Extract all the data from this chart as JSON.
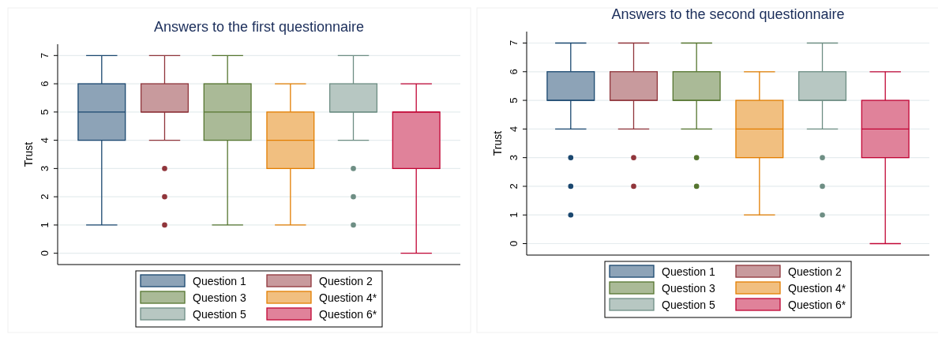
{
  "chart_data": [
    {
      "type": "box",
      "title": "Answers to the first questionnaire",
      "ylabel": "Trust",
      "categories": [
        null
      ],
      "ylim": [
        -0.4,
        7.4
      ],
      "yticks": [
        0,
        1,
        2,
        3,
        4,
        5,
        6,
        7
      ],
      "grid": "y",
      "legend": "bottom",
      "series": [
        {
          "name": "Question 1",
          "color": "#1a476f",
          "boxes": [
            {
              "low": 1,
              "q1": 4,
              "median": 5,
              "q3": 6,
              "high": 7
            }
          ]
        },
        {
          "name": "Question 2",
          "color": "#90353b",
          "boxes": [
            {
              "low": 4,
              "q1": 5,
              "median": 5,
              "q3": 6,
              "high": 7,
              "outliers": [
                3,
                2,
                1
              ]
            }
          ]
        },
        {
          "name": "Question 3",
          "color": "#55752f",
          "boxes": [
            {
              "low": 1,
              "q1": 4,
              "median": 5,
              "q3": 6,
              "high": 7
            }
          ]
        },
        {
          "name": "Question 4*",
          "color": "#e37e00",
          "boxes": [
            {
              "low": 1,
              "q1": 3,
              "median": 4,
              "q3": 5,
              "high": 6
            }
          ]
        },
        {
          "name": "Question 5",
          "color": "#6e8e84",
          "boxes": [
            {
              "low": 4,
              "q1": 5,
              "median": 5,
              "q3": 6,
              "high": 7,
              "outliers": [
                3,
                2,
                1
              ]
            }
          ]
        },
        {
          "name": "Question 6*",
          "color": "#c10534",
          "boxes": [
            {
              "low": 0,
              "q1": 3,
              "median": 5,
              "q3": 5,
              "high": 6
            }
          ]
        }
      ]
    },
    {
      "type": "box",
      "title": "Answers to the second questionnaire",
      "ylabel": "Trust",
      "categories": [
        null
      ],
      "ylim": [
        -0.4,
        7.4
      ],
      "yticks": [
        0,
        1,
        2,
        3,
        4,
        5,
        6,
        7
      ],
      "grid": "y",
      "legend": "bottom",
      "series": [
        {
          "name": "Question 1",
          "color": "#1a476f",
          "boxes": [
            {
              "low": 4,
              "q1": 5,
              "median": 5,
              "q3": 6,
              "high": 7,
              "outliers": [
                3,
                2,
                1
              ]
            }
          ]
        },
        {
          "name": "Question 2",
          "color": "#90353b",
          "boxes": [
            {
              "low": 4,
              "q1": 5,
              "median": 5,
              "q3": 6,
              "high": 7,
              "outliers": [
                3,
                2
              ]
            }
          ]
        },
        {
          "name": "Question 3",
          "color": "#55752f",
          "boxes": [
            {
              "low": 4,
              "q1": 5,
              "median": 5,
              "q3": 6,
              "high": 7,
              "outliers": [
                3,
                2
              ]
            }
          ]
        },
        {
          "name": "Question 4*",
          "color": "#e37e00",
          "boxes": [
            {
              "low": 1,
              "q1": 3,
              "median": 4,
              "q3": 5,
              "high": 6
            }
          ]
        },
        {
          "name": "Question 5",
          "color": "#6e8e84",
          "boxes": [
            {
              "low": 4,
              "q1": 5,
              "median": 5,
              "q3": 6,
              "high": 7,
              "outliers": [
                3,
                2,
                1
              ]
            }
          ]
        },
        {
          "name": "Question 6*",
          "color": "#c10534",
          "boxes": [
            {
              "low": 0,
              "q1": 3,
              "median": 4,
              "q3": 5,
              "high": 6
            }
          ]
        }
      ]
    }
  ]
}
